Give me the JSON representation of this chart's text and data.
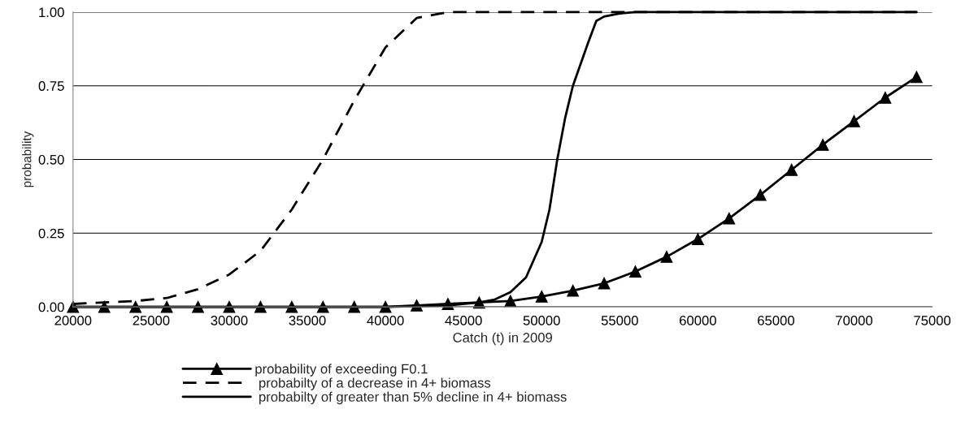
{
  "chart_data": {
    "type": "line",
    "xlabel": "Catch (t) in 2009",
    "ylabel": "probability",
    "xlim": [
      20000,
      75000
    ],
    "xticks": [
      20000,
      25000,
      30000,
      35000,
      40000,
      45000,
      50000,
      55000,
      60000,
      65000,
      70000,
      75000
    ],
    "ylim": [
      0,
      1
    ],
    "yticks": [
      {
        "value": 0,
        "label": "0.00"
      },
      {
        "value": 0.25,
        "label": "0.25"
      },
      {
        "value": 0.5,
        "label": "0.50"
      },
      {
        "value": 0.75,
        "label": "0.75"
      },
      {
        "value": 1,
        "label": "1.00"
      }
    ],
    "grid": "y",
    "legend": "bottom",
    "series": [
      {
        "name": "probability of exceeding F0.1",
        "color": "#000000",
        "marker": "triangle",
        "line_style": "solid",
        "x": [
          20000,
          22000,
          24000,
          26000,
          28000,
          30000,
          32000,
          34000,
          36000,
          38000,
          40000,
          42000,
          44000,
          46000,
          48000,
          50000,
          52000,
          54000,
          56000,
          58000,
          60000,
          62000,
          64000,
          66000,
          68000,
          70000,
          72000,
          74000
        ],
        "values": [
          0,
          0,
          0,
          0,
          0,
          0,
          0,
          0,
          0,
          0,
          0,
          0.005,
          0.01,
          0.015,
          0.02,
          0.035,
          0.055,
          0.08,
          0.12,
          0.17,
          0.23,
          0.3,
          0.38,
          0.465,
          0.55,
          0.63,
          0.71,
          0.78
        ]
      },
      {
        "name": " probabilty of a decrease in 4+ biomass",
        "color": "#000000",
        "marker": "none",
        "line_style": "dashed",
        "x": [
          20000,
          22000,
          24000,
          26000,
          28000,
          30000,
          32000,
          34000,
          36000,
          38000,
          40000,
          42000,
          44000,
          46000,
          50000,
          55000,
          60000,
          65000,
          70000,
          74000
        ],
        "values": [
          0.01,
          0.015,
          0.02,
          0.03,
          0.06,
          0.11,
          0.19,
          0.33,
          0.5,
          0.7,
          0.88,
          0.98,
          1.0,
          1.0,
          1.0,
          1.0,
          1.0,
          1.0,
          1.0,
          1.0
        ]
      },
      {
        "name": " probabilty of greater than 5% decline in 4+ biomass",
        "color": "#000000",
        "marker": "none",
        "line_style": "solid",
        "x": [
          20000,
          30000,
          40000,
          42000,
          44000,
          46000,
          47000,
          48000,
          49000,
          50000,
          50500,
          51000,
          51500,
          52000,
          53000,
          53500,
          54000,
          55000,
          56000,
          60000,
          65000,
          70000,
          74000
        ],
        "values": [
          0,
          0,
          0,
          0.002,
          0.005,
          0.015,
          0.025,
          0.05,
          0.1,
          0.22,
          0.33,
          0.5,
          0.64,
          0.75,
          0.9,
          0.97,
          0.985,
          0.995,
          1.0,
          1.0,
          1.0,
          1.0,
          1.0
        ]
      }
    ]
  }
}
